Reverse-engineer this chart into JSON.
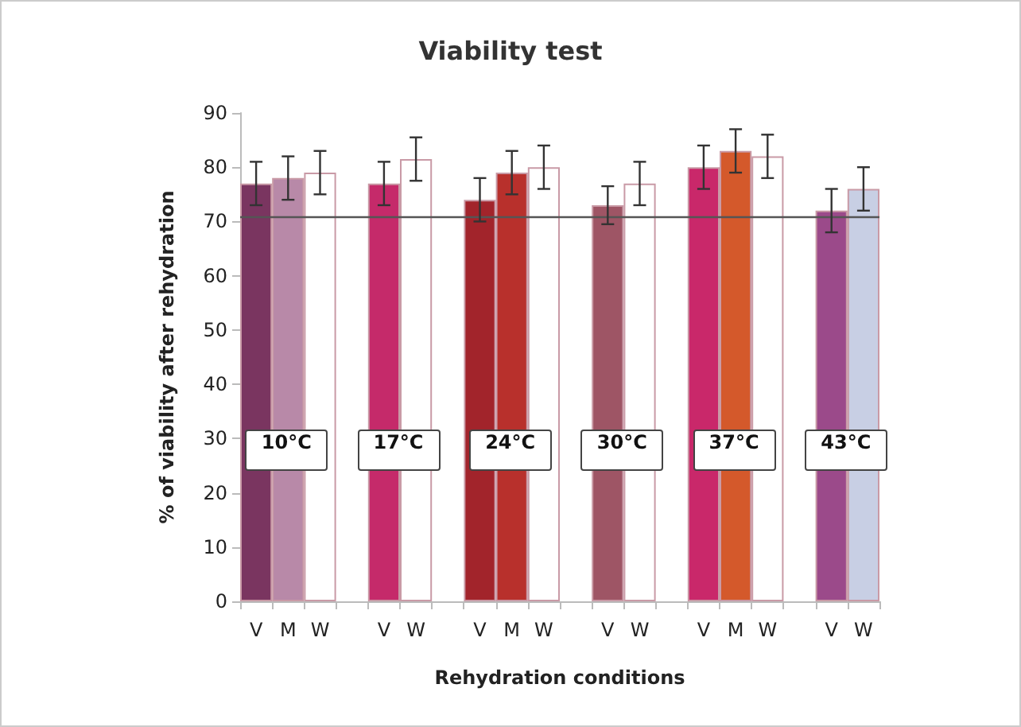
{
  "chart_data": {
    "type": "bar",
    "title": "Viability test",
    "xlabel": "Rehydration conditions",
    "ylabel": "% of viability after rehydration",
    "categories": [
      "V",
      "M",
      "W",
      null,
      "V",
      "W",
      null,
      "V",
      "M",
      "W",
      null,
      "V",
      "W",
      null,
      "V",
      "M",
      "W",
      null,
      "V",
      "W"
    ],
    "values": [
      77,
      78,
      79,
      null,
      77,
      81.5,
      null,
      74,
      79,
      80,
      null,
      73,
      77,
      null,
      80,
      83,
      82,
      null,
      72,
      76
    ],
    "errors": [
      4,
      4,
      4,
      null,
      4,
      4,
      null,
      4,
      4,
      4,
      null,
      3.5,
      4,
      null,
      4,
      4,
      4,
      null,
      4,
      4
    ],
    "colors": [
      "#7a3560",
      "#b889a8",
      "#ffffff",
      null,
      "#c52a6a",
      "#ffffff",
      null,
      "#a2242b",
      "#b8302c",
      "#ffffff",
      null,
      "#9e5565",
      "#ffffff",
      null,
      "#c9286a",
      "#d4592b",
      "#ffffff",
      null,
      "#9b4a8a",
      "#c8cfe4"
    ],
    "ylim": [
      0,
      90
    ],
    "yticks": [
      0,
      10,
      20,
      30,
      40,
      50,
      60,
      70,
      80,
      90
    ],
    "grid": false,
    "ref_lines": [
      {
        "axis": "y",
        "value": 71,
        "color": "#555555"
      }
    ],
    "annotations": [
      "10°C",
      "17°C",
      "24°C",
      "30°C",
      "37°C",
      "43°C"
    ]
  }
}
